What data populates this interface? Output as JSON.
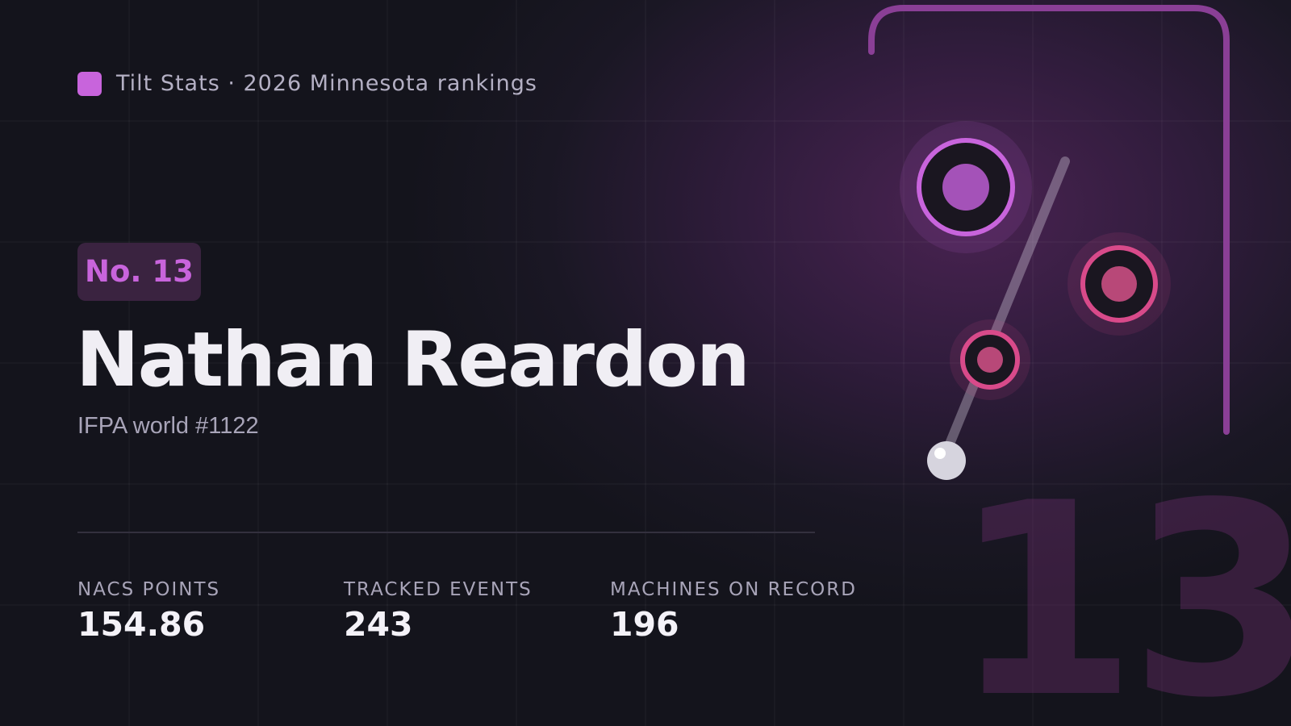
{
  "brand": "Tilt Stats · 2026 Minnesota rankings",
  "badge": "No. 13",
  "player": {
    "name": "Nathan Reardon",
    "subtitle": "IFPA world #1122"
  },
  "stats": [
    {
      "label": "NACS POINTS",
      "value": "154.86"
    },
    {
      "label": "TRACKED EVENTS",
      "value": "243"
    },
    {
      "label": "MACHINES ON RECORD",
      "value": "196"
    }
  ],
  "watermark": "13"
}
